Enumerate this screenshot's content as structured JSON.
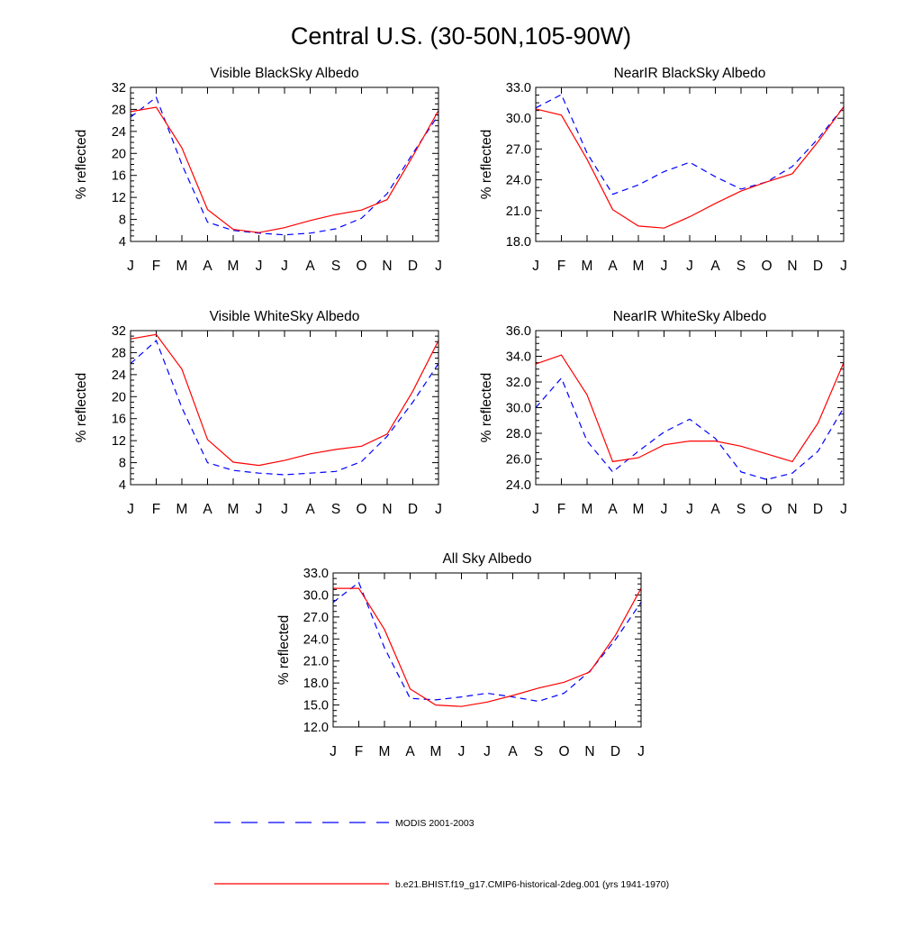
{
  "figure": {
    "title": "Central U.S. (30-50N,105-90W)"
  },
  "legend": {
    "entries": [
      {
        "label": "MODIS 2001-2003",
        "color": "#0000ff",
        "style": "dashed"
      },
      {
        "label": "b.e21.BHIST.f19_g17.CMIP6-historical-2deg.001 (yrs 1941-1970)",
        "color": "#ff0000",
        "style": "solid"
      }
    ]
  },
  "chart_data": [
    {
      "type": "line",
      "title": "Visible BlackSky Albedo",
      "ylabel": "% reflected",
      "categories": [
        "J",
        "F",
        "M",
        "A",
        "M",
        "J",
        "J",
        "A",
        "S",
        "O",
        "N",
        "D",
        "J"
      ],
      "ylim": [
        4,
        32
      ],
      "yticks": [
        4,
        8,
        12,
        16,
        20,
        24,
        28,
        32
      ],
      "ytick_labels": [
        "4",
        "8",
        "12",
        "16",
        "20",
        "24",
        "28",
        "32"
      ],
      "series": [
        {
          "name": "MODIS 2001-2003",
          "color": "#0000ff",
          "values": [
            26.6,
            30.2,
            18.0,
            7.5,
            6.0,
            5.5,
            5.2,
            5.5,
            6.3,
            8.2,
            12.7,
            20.0,
            27.0
          ]
        },
        {
          "name": "b.e21.BHIST.f19_g17.CMIP6-historical-2deg.001 (yrs 1941-1970)",
          "color": "#ff0000",
          "values": [
            27.6,
            28.4,
            21.0,
            9.8,
            6.2,
            5.6,
            6.5,
            7.8,
            8.9,
            9.7,
            11.6,
            19.5,
            27.8
          ]
        }
      ]
    },
    {
      "type": "line",
      "title": "NearIR BlackSky Albedo",
      "ylabel": "% reflected",
      "categories": [
        "J",
        "F",
        "M",
        "A",
        "M",
        "J",
        "J",
        "A",
        "S",
        "O",
        "N",
        "D",
        "J"
      ],
      "ylim": [
        18,
        33
      ],
      "yticks": [
        18,
        21,
        24,
        27,
        30,
        33
      ],
      "ytick_labels": [
        "18.0",
        "21.0",
        "24.0",
        "27.0",
        "30.0",
        "33.0"
      ],
      "series": [
        {
          "name": "MODIS 2001-2003",
          "color": "#0000ff",
          "values": [
            31.0,
            32.3,
            26.6,
            22.6,
            23.5,
            24.8,
            25.7,
            24.3,
            23.1,
            23.8,
            25.3,
            28.0,
            31.1
          ]
        },
        {
          "name": "b.e21.BHIST.f19_g17.CMIP6-historical-2deg.001 (yrs 1941-1970)",
          "color": "#ff0000",
          "values": [
            30.9,
            30.3,
            26.0,
            21.1,
            19.5,
            19.3,
            20.4,
            21.7,
            22.9,
            23.8,
            24.6,
            27.7,
            31.1
          ]
        }
      ]
    },
    {
      "type": "line",
      "title": "Visible WhiteSky Albedo",
      "ylabel": "% reflected",
      "categories": [
        "J",
        "F",
        "M",
        "A",
        "M",
        "J",
        "J",
        "A",
        "S",
        "O",
        "N",
        "D",
        "J"
      ],
      "ylim": [
        4,
        32
      ],
      "yticks": [
        4,
        8,
        12,
        16,
        20,
        24,
        28,
        32
      ],
      "ytick_labels": [
        "4",
        "8",
        "12",
        "16",
        "20",
        "24",
        "28",
        "32"
      ],
      "series": [
        {
          "name": "MODIS 2001-2003",
          "color": "#0000ff",
          "values": [
            26.0,
            30.2,
            18.0,
            8.0,
            6.6,
            6.1,
            5.8,
            6.1,
            6.4,
            8.2,
            12.8,
            19.0,
            26.0
          ]
        },
        {
          "name": "b.e21.BHIST.f19_g17.CMIP6-historical-2deg.001 (yrs 1941-1970)",
          "color": "#ff0000",
          "values": [
            30.5,
            31.3,
            25.0,
            12.2,
            8.1,
            7.5,
            8.4,
            9.6,
            10.4,
            11.0,
            13.2,
            21.0,
            30.2
          ]
        }
      ]
    },
    {
      "type": "line",
      "title": "NearIR WhiteSky Albedo",
      "ylabel": "% reflected",
      "categories": [
        "J",
        "F",
        "M",
        "A",
        "M",
        "J",
        "J",
        "A",
        "S",
        "O",
        "N",
        "D",
        "J"
      ],
      "ylim": [
        24,
        36
      ],
      "yticks": [
        24,
        26,
        28,
        30,
        32,
        34,
        36
      ],
      "ytick_labels": [
        "24.0",
        "26.0",
        "28.0",
        "30.0",
        "32.0",
        "34.0",
        "36.0"
      ],
      "series": [
        {
          "name": "MODIS 2001-2003",
          "color": "#0000ff",
          "values": [
            30.0,
            32.3,
            27.4,
            25.0,
            26.6,
            28.1,
            29.1,
            27.6,
            25.0,
            24.4,
            24.9,
            26.6,
            30.0
          ]
        },
        {
          "name": "b.e21.BHIST.f19_g17.CMIP6-historical-2deg.001 (yrs 1941-1970)",
          "color": "#ff0000",
          "values": [
            33.4,
            34.1,
            31.0,
            25.8,
            26.1,
            27.1,
            27.4,
            27.4,
            27.0,
            26.4,
            25.8,
            28.8,
            33.5
          ]
        }
      ]
    },
    {
      "type": "line",
      "title": "All Sky Albedo",
      "ylabel": "% reflected",
      "categories": [
        "J",
        "F",
        "M",
        "A",
        "M",
        "J",
        "J",
        "A",
        "S",
        "O",
        "N",
        "D",
        "J"
      ],
      "ylim": [
        12,
        33
      ],
      "yticks": [
        12,
        15,
        18,
        21,
        24,
        27,
        30,
        33
      ],
      "ytick_labels": [
        "12.0",
        "15.0",
        "18.0",
        "21.0",
        "24.0",
        "27.0",
        "30.0",
        "33.0"
      ],
      "series": [
        {
          "name": "MODIS 2001-2003",
          "color": "#0000ff",
          "values": [
            29.0,
            31.7,
            22.8,
            15.9,
            15.7,
            16.1,
            16.6,
            16.1,
            15.5,
            16.6,
            19.6,
            23.9,
            29.0
          ]
        },
        {
          "name": "b.e21.BHIST.f19_g17.CMIP6-historical-2deg.001 (yrs 1941-1970)",
          "color": "#ff0000",
          "values": [
            30.9,
            30.9,
            25.3,
            17.2,
            15.0,
            14.8,
            15.4,
            16.3,
            17.3,
            18.1,
            19.5,
            24.5,
            30.9
          ]
        }
      ]
    }
  ]
}
